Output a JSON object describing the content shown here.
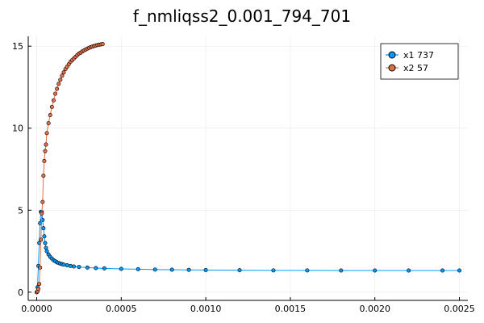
{
  "chart_data": {
    "type": "line",
    "title": "f_nmliqss2_0.001_794_701",
    "xlabel": "",
    "ylabel": "",
    "xlim": [
      -5e-05,
      0.00255
    ],
    "ylim": [
      -0.5,
      15.6
    ],
    "grid": true,
    "legend_position": "top-right",
    "x_ticks": [
      {
        "value": 0.0,
        "label": "0.0000"
      },
      {
        "value": 0.0005,
        "label": "0.0005"
      },
      {
        "value": 0.001,
        "label": "0.0010"
      },
      {
        "value": 0.0015,
        "label": "0.0015"
      },
      {
        "value": 0.002,
        "label": "0.0020"
      },
      {
        "value": 0.0025,
        "label": "0.0025"
      }
    ],
    "y_ticks": [
      {
        "value": 0,
        "label": "0"
      },
      {
        "value": 5,
        "label": "5"
      },
      {
        "value": 10,
        "label": "10"
      },
      {
        "value": 15,
        "label": "15"
      }
    ],
    "series": [
      {
        "name": "x1 737",
        "color": "#009AFA",
        "x": [
          0.0,
          5e-06,
          1e-05,
          1.5e-05,
          2e-05,
          2.5e-05,
          3e-05,
          3.5e-05,
          4e-05,
          4.5e-05,
          5e-05,
          5.5e-05,
          6e-05,
          7e-05,
          8e-05,
          9e-05,
          0.0001,
          0.00011,
          0.00012,
          0.00013,
          0.00014,
          0.00015,
          0.00016,
          0.00018,
          0.0002,
          0.00022,
          0.00025,
          0.0003,
          0.00035,
          0.0004,
          0.0005,
          0.0006,
          0.0007,
          0.0008,
          0.0009,
          0.001,
          0.0012,
          0.0014,
          0.0016,
          0.0018,
          0.002,
          0.0022,
          0.0024,
          0.0025
        ],
        "y": [
          0.0,
          0.3,
          1.6,
          3.0,
          4.2,
          4.9,
          4.9,
          4.4,
          3.9,
          3.4,
          3.0,
          2.7,
          2.5,
          2.3,
          2.15,
          2.05,
          1.95,
          1.88,
          1.82,
          1.78,
          1.74,
          1.71,
          1.68,
          1.64,
          1.6,
          1.57,
          1.54,
          1.5,
          1.47,
          1.45,
          1.42,
          1.4,
          1.38,
          1.37,
          1.36,
          1.35,
          1.34,
          1.33,
          1.33,
          1.32,
          1.32,
          1.32,
          1.32,
          1.32
        ]
      },
      {
        "name": "x2 57",
        "color": "#E26F46",
        "x": [
          0.0,
          5e-06,
          1e-05,
          1.5e-05,
          2e-05,
          2.5e-05,
          3e-05,
          3.5e-05,
          4e-05,
          4.5e-05,
          5e-05,
          5.5e-05,
          6e-05,
          7e-05,
          8e-05,
          9e-05,
          0.0001,
          0.00011,
          0.00012,
          0.00013,
          0.00014,
          0.00015,
          0.00016,
          0.00017,
          0.00018,
          0.00019,
          0.0002,
          0.00021,
          0.00022,
          0.00023,
          0.00024,
          0.00025,
          0.00026,
          0.00027,
          0.00028,
          0.00029,
          0.0003,
          0.00031,
          0.00032,
          0.00033,
          0.00034,
          0.00035,
          0.00036,
          0.00037,
          0.00038,
          0.00039
        ],
        "y": [
          0.0,
          0.05,
          0.2,
          0.5,
          1.5,
          3.2,
          4.8,
          5.5,
          7.1,
          8.0,
          8.6,
          9.0,
          9.7,
          10.3,
          10.8,
          11.3,
          11.7,
          12.1,
          12.4,
          12.7,
          12.95,
          13.2,
          13.4,
          13.6,
          13.75,
          13.9,
          14.05,
          14.15,
          14.25,
          14.35,
          14.45,
          14.55,
          14.6,
          14.68,
          14.74,
          14.8,
          14.85,
          14.9,
          14.94,
          14.98,
          15.01,
          15.04,
          15.07,
          15.09,
          15.11,
          15.13
        ]
      }
    ]
  }
}
